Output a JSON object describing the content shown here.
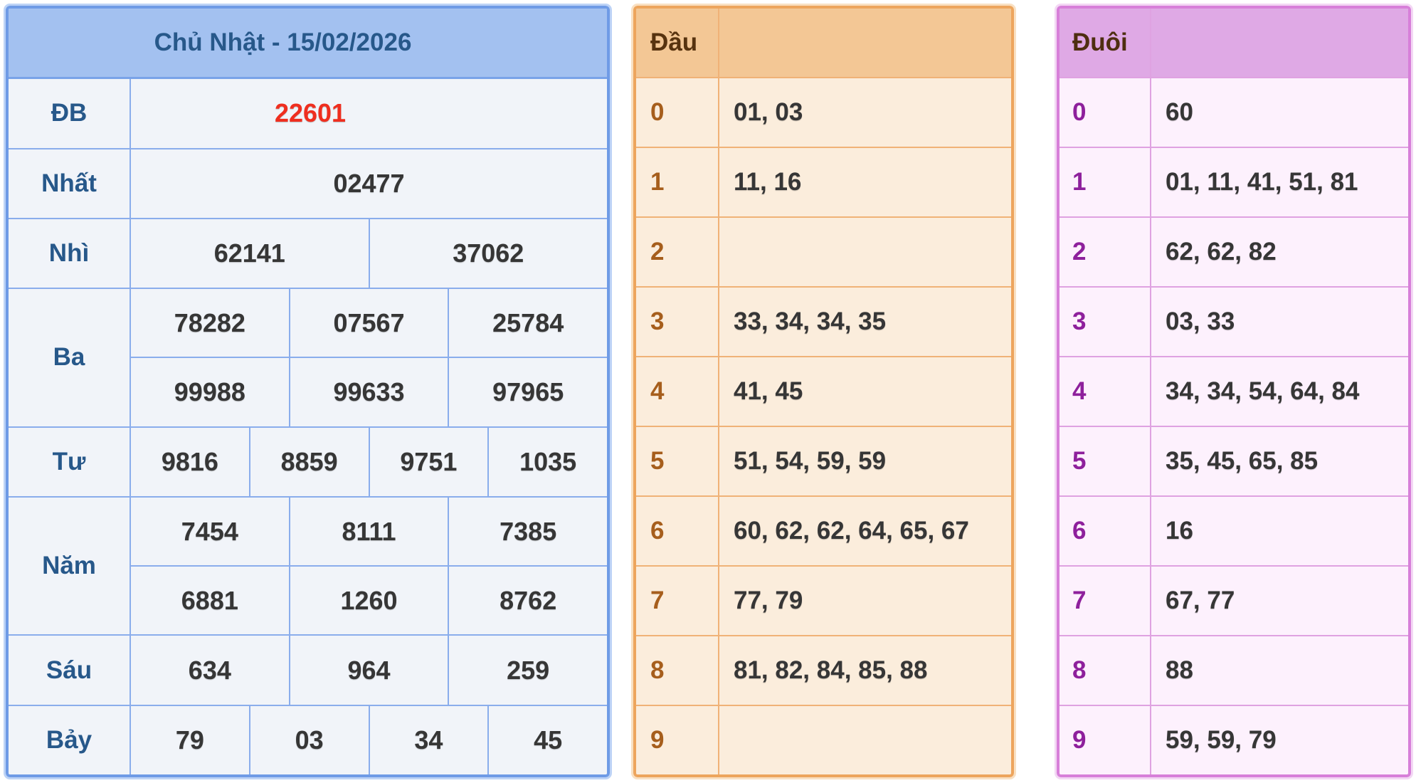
{
  "results": {
    "title": "Chủ Nhật - 15/02/2026",
    "db": {
      "label": "ĐB",
      "value": "22601"
    },
    "nhat": {
      "label": "Nhất",
      "value": "02477"
    },
    "nhi": {
      "label": "Nhì",
      "values": [
        "62141",
        "37062"
      ]
    },
    "ba": {
      "label": "Ba",
      "row1": [
        "78282",
        "07567",
        "25784"
      ],
      "row2": [
        "99988",
        "99633",
        "97965"
      ]
    },
    "tu": {
      "label": "Tư",
      "values": [
        "9816",
        "8859",
        "9751",
        "1035"
      ]
    },
    "nam": {
      "label": "Năm",
      "row1": [
        "7454",
        "8111",
        "7385"
      ],
      "row2": [
        "6881",
        "1260",
        "8762"
      ]
    },
    "sau": {
      "label": "Sáu",
      "values": [
        "634",
        "964",
        "259"
      ]
    },
    "bay": {
      "label": "Bảy",
      "values": [
        "79",
        "03",
        "34",
        "45"
      ]
    }
  },
  "dau": {
    "header": "Đầu",
    "rows": [
      {
        "digit": "0",
        "numbers": "01, 03"
      },
      {
        "digit": "1",
        "numbers": "11, 16"
      },
      {
        "digit": "2",
        "numbers": ""
      },
      {
        "digit": "3",
        "numbers": "33, 34, 34, 35"
      },
      {
        "digit": "4",
        "numbers": "41, 45"
      },
      {
        "digit": "5",
        "numbers": "51, 54, 59, 59"
      },
      {
        "digit": "6",
        "numbers": "60, 62, 62, 64, 65, 67"
      },
      {
        "digit": "7",
        "numbers": "77, 79"
      },
      {
        "digit": "8",
        "numbers": "81, 82, 84, 85, 88"
      },
      {
        "digit": "9",
        "numbers": ""
      }
    ]
  },
  "duoi": {
    "header": "Đuôi",
    "rows": [
      {
        "digit": "0",
        "numbers": "60"
      },
      {
        "digit": "1",
        "numbers": "01, 11, 41, 51, 81"
      },
      {
        "digit": "2",
        "numbers": "62, 62, 82"
      },
      {
        "digit": "3",
        "numbers": "03, 33"
      },
      {
        "digit": "4",
        "numbers": "34, 34, 54, 64, 84"
      },
      {
        "digit": "5",
        "numbers": "35, 45, 65, 85"
      },
      {
        "digit": "6",
        "numbers": "16"
      },
      {
        "digit": "7",
        "numbers": "67, 77"
      },
      {
        "digit": "8",
        "numbers": "88"
      },
      {
        "digit": "9",
        "numbers": "59, 59, 79"
      }
    ]
  },
  "colors": {
    "special_prize": "#ef2e1f",
    "results_accent": "#6f9be6",
    "results_header_bg": "#a3c1f0",
    "results_label_text": "#27588a",
    "dau_accent": "#eda55d",
    "dau_header_bg": "#f3c795",
    "dau_digit_text": "#a65e1c",
    "duoi_accent": "#d77fd9",
    "duoi_header_bg": "#dfa9e5",
    "duoi_digit_text": "#8e209c",
    "number_text": "#363636"
  }
}
